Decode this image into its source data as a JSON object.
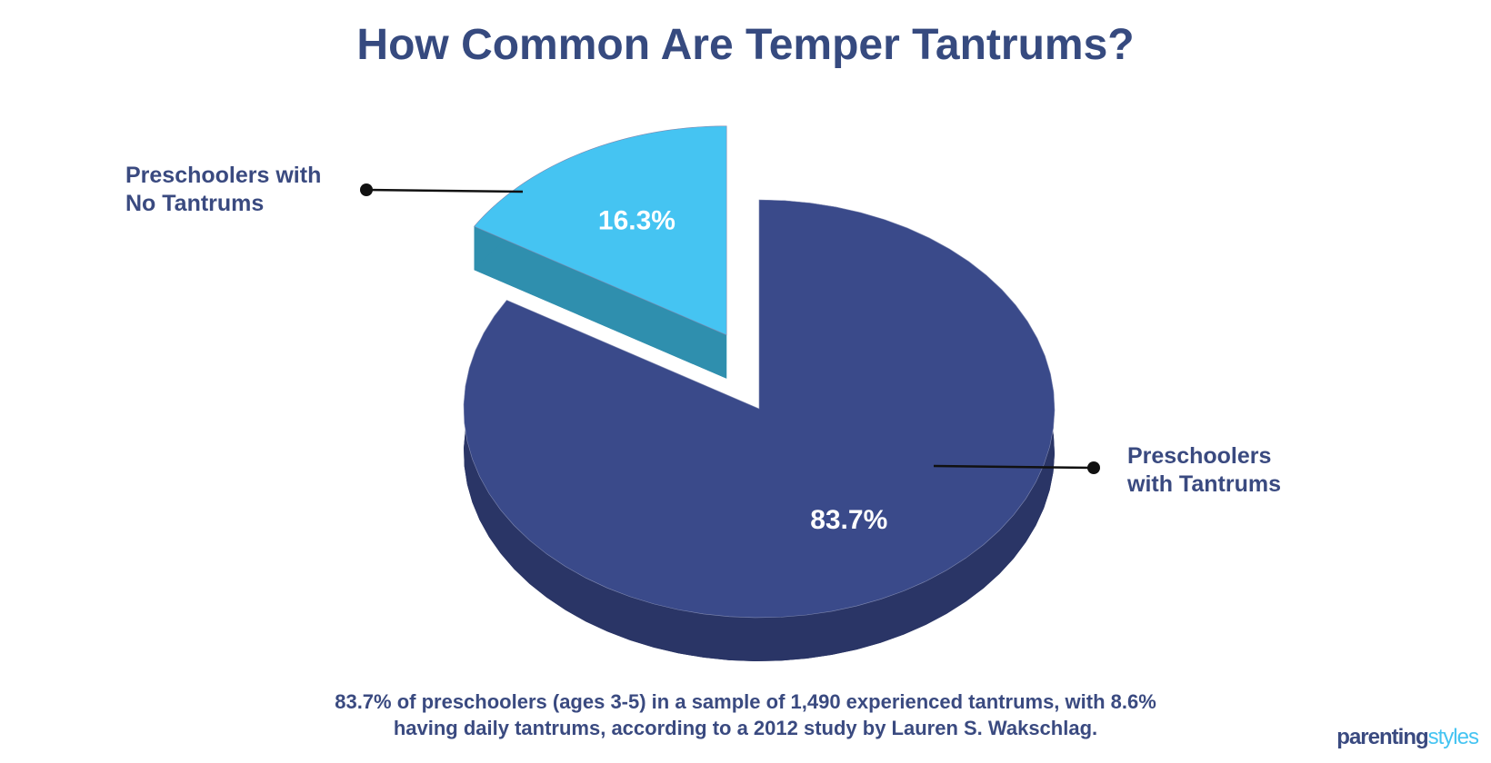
{
  "chart_data": {
    "type": "pie3d",
    "title": "How Common Are Temper Tantrums?",
    "categories": [
      "Preschoolers with Tantrums",
      "Preschoolers with No Tantrums"
    ],
    "values": [
      83.7,
      16.3
    ],
    "value_labels": [
      "83.7%",
      "16.3%"
    ],
    "colors": [
      "#3a4a8a",
      "#45c4f2"
    ],
    "side_colors": [
      "#2a3566",
      "#2f8fae"
    ],
    "exploded": [
      false,
      true
    ],
    "caption": "83.7% of preschoolers (ages 3-5) in a sample of 1,490 experienced tantrums, with 8.6% having daily tantrums, according to a 2012 study by Lauren S. Wakschlag."
  },
  "logo": {
    "first": "parenting",
    "second": "styles"
  }
}
